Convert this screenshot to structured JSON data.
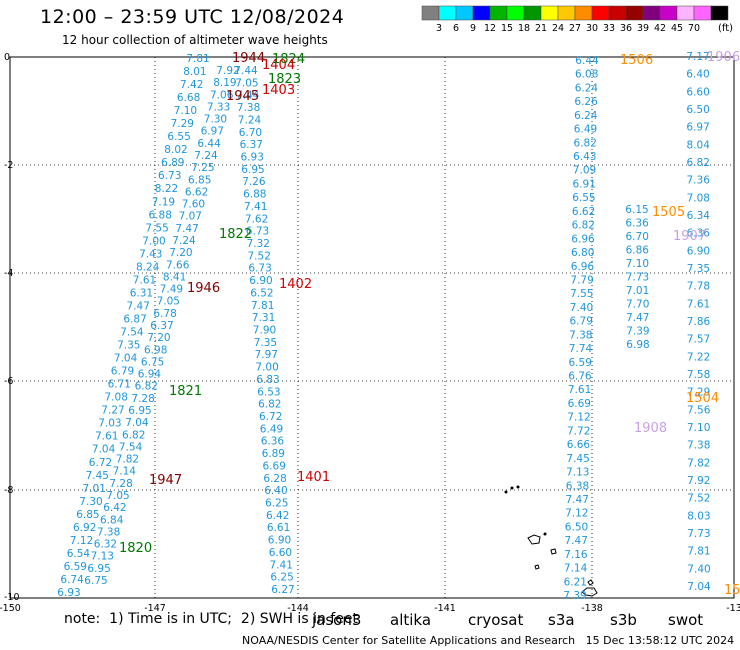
{
  "header": {
    "title": "12:00 – 23:59 UTC 12/08/2024",
    "subtitle": "12 hour collection of altimeter wave heights"
  },
  "legend": {
    "unit": "(ft)",
    "colors": [
      "#808080",
      "#00ffff",
      "#00c8ff",
      "#0000ff",
      "#00b400",
      "#00ff00",
      "#009600",
      "#ffff00",
      "#ffc800",
      "#ff8c00",
      "#ff0000",
      "#c80000",
      "#960000",
      "#800080",
      "#c800c8",
      "#ffb4ff",
      "#ff64ff",
      "#000000"
    ],
    "values": [
      "3",
      "6",
      "9",
      "12",
      "15",
      "18",
      "21",
      "24",
      "27",
      "30",
      "33",
      "36",
      "39",
      "42",
      "45",
      "70"
    ]
  },
  "map": {
    "x_ticks": [
      "-150",
      "-147",
      "-144",
      "-141",
      "-138",
      "-13"
    ],
    "y_ticks": [
      "0",
      "-2",
      "-4",
      "-6",
      "-8",
      "-10"
    ],
    "xlim": [
      -150,
      -135
    ],
    "ylim": [
      -10,
      0
    ],
    "grid": true
  },
  "tracks": {
    "color": "#1e96dc",
    "t1": [
      "7.81",
      "8.01",
      "7.42",
      "6.68",
      "7.10",
      "7.29",
      "6.55",
      "8.02",
      "6.89",
      "6.73",
      "8.22",
      "7.19",
      "6.88",
      "7.55",
      "7.00",
      "7.43",
      "8.24",
      "7.61",
      "6.31",
      "7.47",
      "6.87",
      "7.54",
      "7.35",
      "7.04",
      "6.79",
      "6.71",
      "7.08",
      "7.27",
      "7.03",
      "7.61",
      "7.04",
      "6.72",
      "7.45",
      "7.01",
      "7.30",
      "6.85",
      "6.92",
      "7.12",
      "6.54",
      "6.59",
      "6.74",
      "6.93"
    ],
    "t2": [
      "7.92",
      "8.19",
      "7.06",
      "7.33",
      "7.30",
      "6.97",
      "6.44",
      "7.24",
      "7.25",
      "6.85",
      "6.62",
      "7.60",
      "7.07",
      "7.47",
      "7.24",
      "7.20",
      "7.66",
      "8.41",
      "7.49",
      "7.05",
      "6.78",
      "6.37",
      "7.20",
      "6.98",
      "6.75",
      "6.94",
      "6.82",
      "7.28",
      "6.95",
      "7.04",
      "6.82",
      "7.54",
      "7.82",
      "7.14",
      "7.28",
      "7.05",
      "6.42",
      "6.84",
      "7.38",
      "6.32",
      "7.13",
      "6.95",
      "6.75"
    ],
    "t3": [
      "7.44",
      "7.05",
      "7.44",
      "7.38",
      "7.24",
      "6.70",
      "6.37",
      "6.93",
      "6.95",
      "7.26",
      "6.88",
      "7.41",
      "7.62",
      "6.73",
      "7.32",
      "7.52",
      "6.73",
      "6.90",
      "6.52",
      "7.81",
      "7.31",
      "7.90",
      "7.35",
      "7.97",
      "7.00",
      "6.83",
      "6.53",
      "6.82",
      "6.72",
      "6.49",
      "6.36",
      "6.89",
      "6.69",
      "6.28",
      "6.40",
      "6.25",
      "6.42",
      "6.61",
      "6.90",
      "6.60",
      "7.41",
      "6.25",
      "6.27"
    ],
    "t4": [
      "6.44",
      "6.08",
      "6.24",
      "6.26",
      "6.24",
      "6.49",
      "6.82",
      "6.43",
      "7.09",
      "6.91",
      "6.55",
      "6.62",
      "6.82",
      "6.96",
      "6.80",
      "6.96",
      "7.79",
      "7.55",
      "7.40",
      "6.79",
      "7.38",
      "7.74",
      "6.59",
      "6.76",
      "7.61",
      "6.69",
      "7.12",
      "7.72",
      "6.66",
      "7.45",
      "7.13",
      "6.38",
      "7.47",
      "7.12",
      "6.50",
      "7.47",
      "7.16",
      "7.14",
      "6.21",
      "7.39"
    ],
    "t5": [
      "6.15",
      "6.36",
      "6.70",
      "6.86",
      "7.10",
      "7.73",
      "7.01",
      "7.70",
      "7.47",
      "7.39",
      "6.98"
    ],
    "t6": [
      "7.17",
      "6.40",
      "6.60",
      "6.50",
      "6.97",
      "8.04",
      "6.82",
      "7.36",
      "7.08",
      "6.34",
      "6.36",
      "6.90",
      "7.35",
      "7.78",
      "7.61",
      "7.86",
      "7.57",
      "7.22",
      "7.58",
      "7.29",
      "7.56",
      "7.10",
      "7.38",
      "7.82",
      "7.92",
      "7.52",
      "8.03",
      "7.73",
      "7.81",
      "7.40",
      "7.04"
    ]
  },
  "pass_labels": [
    {
      "text": "1944",
      "color": "#800000"
    },
    {
      "text": "1824",
      "color": "#007800"
    },
    {
      "text": "1404",
      "color": "#d20000"
    },
    {
      "text": "1823",
      "color": "#007800"
    },
    {
      "text": "1945",
      "color": "#800000"
    },
    {
      "text": "1403",
      "color": "#d20000"
    },
    {
      "text": "1822",
      "color": "#007800"
    },
    {
      "text": "1946",
      "color": "#800000"
    },
    {
      "text": "1402",
      "color": "#d20000"
    },
    {
      "text": "1821",
      "color": "#007800"
    },
    {
      "text": "1947",
      "color": "#800000"
    },
    {
      "text": "1401",
      "color": "#d20000"
    },
    {
      "text": "1820",
      "color": "#007800"
    },
    {
      "text": "1506",
      "color": "#ff8c00"
    },
    {
      "text": "1906",
      "color": "#c8a0e6"
    },
    {
      "text": "1505",
      "color": "#ff8c00"
    },
    {
      "text": "1907",
      "color": "#c8a0e6"
    },
    {
      "text": "1504",
      "color": "#ff8c00"
    },
    {
      "text": "1908",
      "color": "#c8a0e6"
    },
    {
      "text": "15",
      "color": "#ff8c00"
    }
  ],
  "footer": {
    "note": "note:  1) Time is in UTC;  2) SWH is in feet",
    "satellites": [
      {
        "name": "jason3",
        "color": "#007800"
      },
      {
        "name": "altika",
        "color": "#ff8c00"
      },
      {
        "name": "cryosat",
        "color": "#d20000"
      },
      {
        "name": "s3a",
        "color": "#800000"
      },
      {
        "name": "s3b",
        "color": "#c8a0e6"
      },
      {
        "name": "swot",
        "color": "#c8a0e6"
      }
    ],
    "credit": "NOAA/NESDIS Center for Satellite Applications and Research   15 Dec 13:58:12 UTC 2024"
  }
}
